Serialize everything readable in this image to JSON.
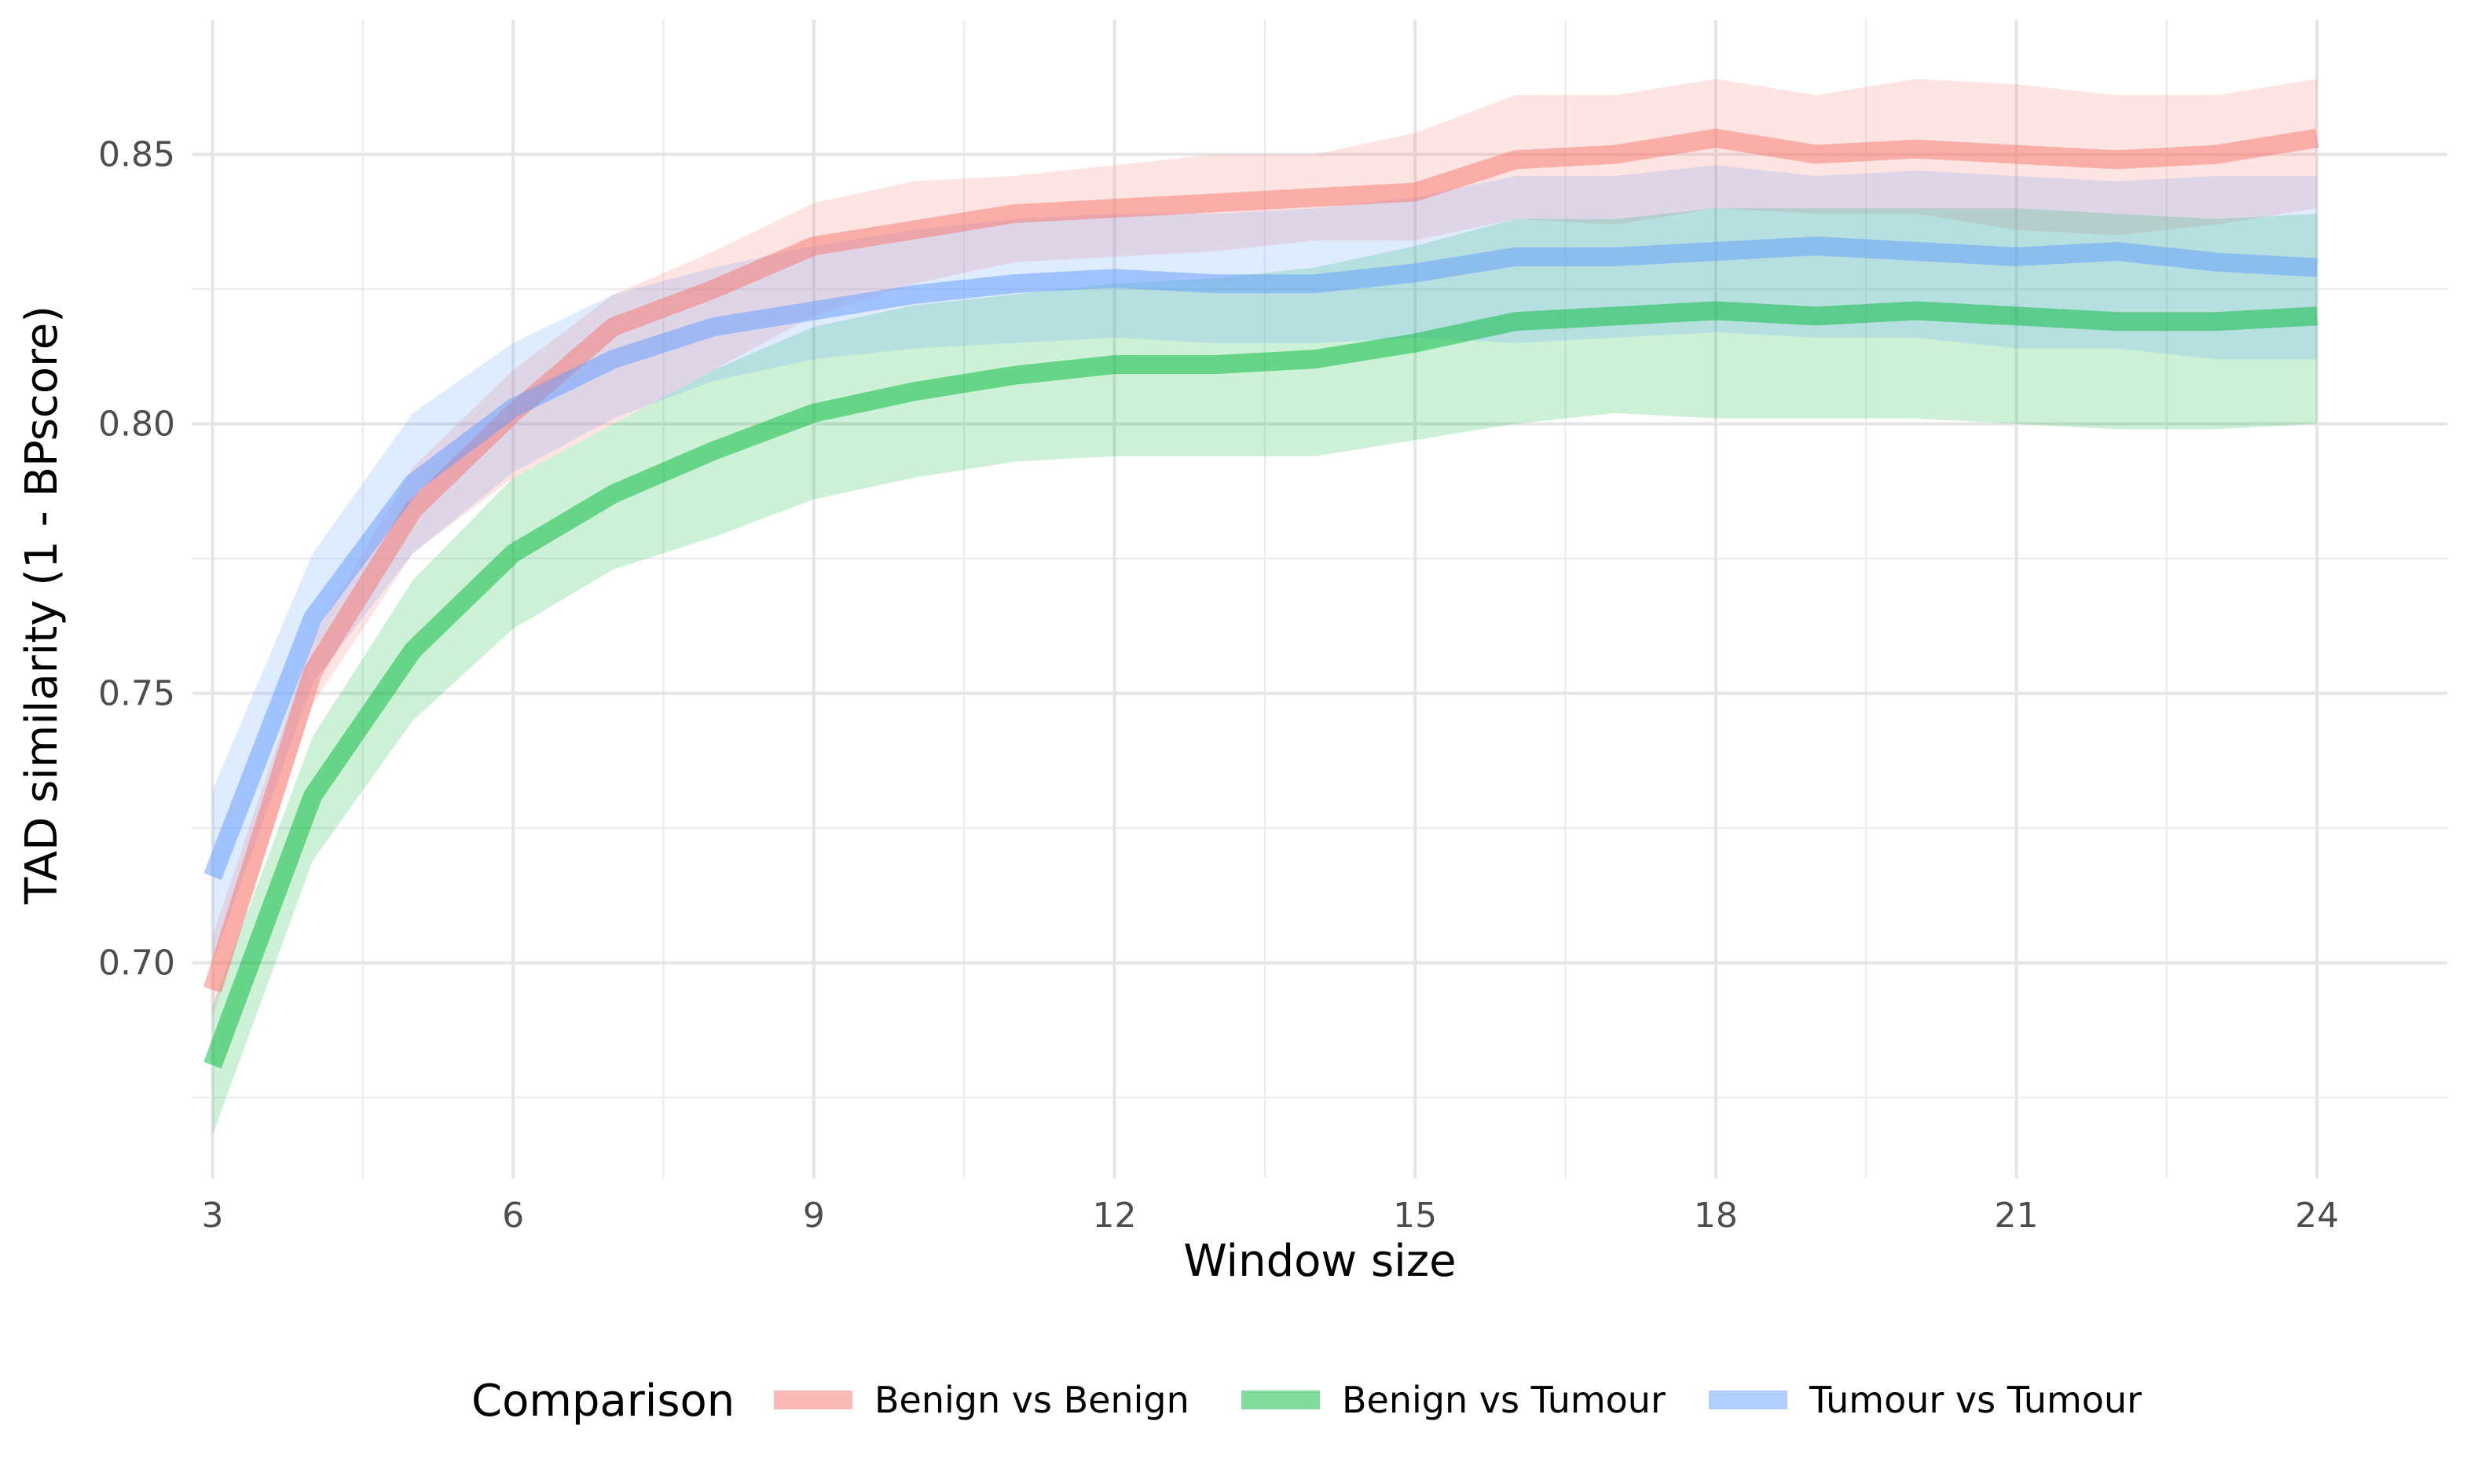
{
  "chart_data": {
    "type": "line",
    "title": "",
    "xlabel": "Window size",
    "ylabel": "TAD similarity (1 - BPscore)",
    "xlim": [
      2.8,
      25.3
    ],
    "ylim": [
      0.66,
      0.875
    ],
    "x_ticks": [
      3,
      6,
      9,
      12,
      15,
      18,
      21,
      24
    ],
    "y_ticks": [
      0.7,
      0.75,
      0.8,
      0.85
    ],
    "grid": true,
    "legend": {
      "title": "Comparison",
      "position": "bottom"
    },
    "x": [
      3,
      4,
      5,
      6,
      7,
      8,
      9,
      10,
      11,
      12,
      13,
      14,
      15,
      16,
      17,
      18,
      19,
      20,
      21,
      22,
      23,
      24
    ],
    "series": [
      {
        "name": "Benign vs Benign",
        "color": "#F8766D",
        "values": [
          0.695,
          0.754,
          0.784,
          0.802,
          0.818,
          0.825,
          0.833,
          0.836,
          0.839,
          0.84,
          0.841,
          0.842,
          0.843,
          0.849,
          0.85,
          0.853,
          0.85,
          0.851,
          0.85,
          0.849,
          0.85,
          0.853
        ],
        "lower": [
          0.69,
          0.748,
          0.776,
          0.79,
          0.8,
          0.81,
          0.82,
          0.826,
          0.83,
          0.831,
          0.832,
          0.834,
          0.834,
          0.838,
          0.837,
          0.84,
          0.839,
          0.839,
          0.836,
          0.835,
          0.837,
          0.84
        ],
        "upper": [
          0.705,
          0.76,
          0.792,
          0.81,
          0.824,
          0.832,
          0.841,
          0.845,
          0.846,
          0.848,
          0.85,
          0.85,
          0.854,
          0.861,
          0.861,
          0.864,
          0.861,
          0.864,
          0.863,
          0.861,
          0.861,
          0.864
        ]
      },
      {
        "name": "Benign vs Tumour",
        "color": "#00BA38",
        "values": [
          0.681,
          0.731,
          0.758,
          0.776,
          0.787,
          0.795,
          0.802,
          0.806,
          0.809,
          0.811,
          0.811,
          0.812,
          0.815,
          0.819,
          0.82,
          0.821,
          0.82,
          0.821,
          0.82,
          0.819,
          0.819,
          0.82
        ],
        "lower": [
          0.668,
          0.719,
          0.745,
          0.762,
          0.773,
          0.779,
          0.786,
          0.79,
          0.793,
          0.794,
          0.794,
          0.794,
          0.797,
          0.8,
          0.802,
          0.801,
          0.801,
          0.801,
          0.8,
          0.799,
          0.799,
          0.8
        ],
        "upper": [
          0.692,
          0.742,
          0.771,
          0.79,
          0.8,
          0.81,
          0.818,
          0.822,
          0.824,
          0.826,
          0.827,
          0.829,
          0.833,
          0.838,
          0.838,
          0.84,
          0.84,
          0.84,
          0.84,
          0.839,
          0.838,
          0.839
        ]
      },
      {
        "name": "Tumour vs Tumour",
        "color": "#619CFF",
        "values": [
          0.716,
          0.764,
          0.789,
          0.803,
          0.812,
          0.818,
          0.821,
          0.824,
          0.826,
          0.827,
          0.826,
          0.826,
          0.828,
          0.831,
          0.831,
          0.832,
          0.833,
          0.832,
          0.831,
          0.832,
          0.83,
          0.829
        ],
        "lower": [
          0.7,
          0.752,
          0.776,
          0.791,
          0.801,
          0.808,
          0.812,
          0.814,
          0.815,
          0.816,
          0.815,
          0.815,
          0.816,
          0.815,
          0.816,
          0.817,
          0.816,
          0.816,
          0.814,
          0.814,
          0.812,
          0.812
        ],
        "upper": [
          0.732,
          0.776,
          0.802,
          0.815,
          0.824,
          0.829,
          0.833,
          0.836,
          0.838,
          0.839,
          0.839,
          0.84,
          0.842,
          0.846,
          0.846,
          0.848,
          0.846,
          0.847,
          0.846,
          0.845,
          0.846,
          0.846
        ]
      }
    ]
  }
}
